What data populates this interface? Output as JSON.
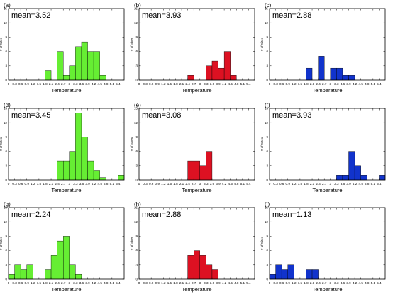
{
  "chart_data": [
    {
      "type": "bar",
      "panel": "(a)",
      "annotation": "mean=3.52",
      "color": "#66ee33",
      "xlabel": "Temperature",
      "ylabel": "# of Sites",
      "ylim": [
        0,
        15
      ],
      "yticks": [
        0,
        3,
        6,
        9,
        12,
        15
      ],
      "xticks": [
        "0",
        "0.3",
        "0.6",
        "0.9",
        "1.2",
        "1.5",
        "1.8",
        "2.1",
        "2.4",
        "2.7",
        "3",
        "3.3",
        "3.6",
        "3.9",
        "4.2",
        "4.5",
        "4.8",
        "5.1",
        "5.4"
      ],
      "bars": [
        {
          "x": 1.95,
          "value": 2
        },
        {
          "x": 2.55,
          "value": 6
        },
        {
          "x": 2.85,
          "value": 1
        },
        {
          "x": 3.15,
          "value": 3
        },
        {
          "x": 3.45,
          "value": 7
        },
        {
          "x": 3.75,
          "value": 8
        },
        {
          "x": 4.05,
          "value": 6
        },
        {
          "x": 4.35,
          "value": 6
        },
        {
          "x": 4.65,
          "value": 1
        }
      ]
    },
    {
      "type": "bar",
      "panel": "(b)",
      "annotation": "mean=3.93",
      "color": "#dd1122",
      "xlabel": "Temperature",
      "ylabel": "# of Sites",
      "ylim": [
        0,
        15
      ],
      "yticks": [
        0,
        3,
        6,
        9,
        12,
        15
      ],
      "xticks": [
        "0",
        "0.3",
        "0.6",
        "0.9",
        "1.2",
        "1.5",
        "1.8",
        "2.1",
        "2.4",
        "2.7",
        "3",
        "3.3",
        "3.6",
        "3.9",
        "4.2",
        "4.5",
        "4.8",
        "5.1",
        "5.4"
      ],
      "bars": [
        {
          "x": 2.55,
          "value": 1
        },
        {
          "x": 3.45,
          "value": 3
        },
        {
          "x": 3.75,
          "value": 4
        },
        {
          "x": 4.05,
          "value": 2.5
        },
        {
          "x": 4.35,
          "value": 6
        },
        {
          "x": 4.65,
          "value": 1
        }
      ]
    },
    {
      "type": "bar",
      "panel": "(c)",
      "annotation": "mean=2.88",
      "color": "#1133cc",
      "xlabel": "Temperature",
      "ylabel": "# of Sites",
      "ylim": [
        0,
        15
      ],
      "yticks": [
        0,
        3,
        6,
        9,
        12,
        15
      ],
      "xticks": [
        "0",
        "0.3",
        "0.6",
        "0.9",
        "1.2",
        "1.5",
        "1.8",
        "2.1",
        "2.4",
        "2.7",
        "3",
        "3.3",
        "3.6",
        "3.9",
        "4.2",
        "4.5",
        "4.8",
        "5.1",
        "5.4"
      ],
      "bars": [
        {
          "x": 1.95,
          "value": 2.5
        },
        {
          "x": 2.55,
          "value": 5
        },
        {
          "x": 3.15,
          "value": 2.5
        },
        {
          "x": 3.45,
          "value": 2.5
        },
        {
          "x": 3.75,
          "value": 1
        },
        {
          "x": 4.05,
          "value": 1
        }
      ]
    },
    {
      "type": "bar",
      "panel": "(d)",
      "annotation": "mean=3.45",
      "color": "#66ee33",
      "xlabel": "Temperature",
      "ylabel": "# of Sites",
      "ylim": [
        0,
        15
      ],
      "yticks": [
        0,
        3,
        6,
        9,
        12,
        15
      ],
      "xticks": [
        "0",
        "0.3",
        "0.6",
        "0.9",
        "1.2",
        "1.5",
        "1.8",
        "2.1",
        "2.4",
        "2.7",
        "3",
        "3.3",
        "3.6",
        "3.9",
        "4.2",
        "4.5",
        "4.8",
        "5.1",
        "5.4"
      ],
      "bars": [
        {
          "x": 2.55,
          "value": 4
        },
        {
          "x": 2.85,
          "value": 4
        },
        {
          "x": 3.15,
          "value": 6
        },
        {
          "x": 3.45,
          "value": 14
        },
        {
          "x": 3.75,
          "value": 9
        },
        {
          "x": 4.05,
          "value": 4
        },
        {
          "x": 4.35,
          "value": 2
        },
        {
          "x": 4.65,
          "value": 0.5
        },
        {
          "x": 5.55,
          "value": 1
        }
      ]
    },
    {
      "type": "bar",
      "panel": "(e)",
      "annotation": "mean=3.08",
      "color": "#dd1122",
      "xlabel": "Temperature",
      "ylabel": "# of Sites",
      "ylim": [
        0,
        15
      ],
      "yticks": [
        0,
        3,
        6,
        9,
        12,
        15
      ],
      "xticks": [
        "0",
        "0.3",
        "0.6",
        "0.9",
        "1.2",
        "1.5",
        "1.8",
        "2.1",
        "2.4",
        "2.7",
        "3",
        "3.3",
        "3.6",
        "3.9",
        "4.2",
        "4.5",
        "4.8",
        "5.1",
        "5.4"
      ],
      "bars": [
        {
          "x": 2.55,
          "value": 4
        },
        {
          "x": 2.85,
          "value": 4
        },
        {
          "x": 3.15,
          "value": 3
        },
        {
          "x": 3.45,
          "value": 6
        }
      ]
    },
    {
      "type": "bar",
      "panel": "(f)",
      "annotation": "mean=3.93",
      "color": "#1133cc",
      "xlabel": "Temperature",
      "ylabel": "# of Sites",
      "ylim": [
        0,
        15
      ],
      "yticks": [
        0,
        3,
        6,
        9,
        12,
        15
      ],
      "xticks": [
        "0",
        "0.3",
        "0.6",
        "0.9",
        "1.2",
        "1.5",
        "1.8",
        "2.1",
        "2.4",
        "2.7",
        "3",
        "3.3",
        "3.6",
        "3.9",
        "4.2",
        "4.5",
        "4.8",
        "5.1",
        "5.4"
      ],
      "bars": [
        {
          "x": 3.45,
          "value": 1
        },
        {
          "x": 3.75,
          "value": 1
        },
        {
          "x": 4.05,
          "value": 6
        },
        {
          "x": 4.35,
          "value": 3
        },
        {
          "x": 4.65,
          "value": 1
        },
        {
          "x": 5.55,
          "value": 1
        }
      ]
    },
    {
      "type": "bar",
      "panel": "(g)",
      "annotation": "mean=2.24",
      "color": "#66ee33",
      "xlabel": "Temperature",
      "ylabel": "# of Sites",
      "ylim": [
        0,
        15
      ],
      "yticks": [
        0,
        3,
        6,
        9,
        12,
        15
      ],
      "xticks": [
        "0",
        "0.3",
        "0.6",
        "0.9",
        "1.2",
        "1.5",
        "1.8",
        "2.1",
        "2.4",
        "2.7",
        "3",
        "3.3",
        "3.6",
        "3.9",
        "4.2",
        "4.5",
        "4.8",
        "5.1",
        "5.4"
      ],
      "bars": [
        {
          "x": 0.15,
          "value": 1
        },
        {
          "x": 0.45,
          "value": 3
        },
        {
          "x": 0.75,
          "value": 2
        },
        {
          "x": 1.05,
          "value": 3
        },
        {
          "x": 1.95,
          "value": 2
        },
        {
          "x": 2.25,
          "value": 5
        },
        {
          "x": 2.55,
          "value": 8
        },
        {
          "x": 2.85,
          "value": 9
        },
        {
          "x": 3.15,
          "value": 3
        },
        {
          "x": 3.45,
          "value": 1
        }
      ]
    },
    {
      "type": "bar",
      "panel": "(h)",
      "annotation": "mean=2.88",
      "color": "#dd1122",
      "xlabel": "Temperature",
      "ylabel": "# of Sites",
      "ylim": [
        0,
        15
      ],
      "yticks": [
        0,
        3,
        6,
        9,
        12,
        15
      ],
      "xticks": [
        "0",
        "0.3",
        "0.6",
        "0.9",
        "1.2",
        "1.5",
        "1.8",
        "2.1",
        "2.4",
        "2.7",
        "3",
        "3.3",
        "3.6",
        "3.9",
        "4.2",
        "4.5",
        "4.8",
        "5.1",
        "5.4"
      ],
      "bars": [
        {
          "x": 2.55,
          "value": 5
        },
        {
          "x": 2.85,
          "value": 6
        },
        {
          "x": 3.15,
          "value": 5
        },
        {
          "x": 3.45,
          "value": 3
        },
        {
          "x": 3.75,
          "value": 2
        }
      ]
    },
    {
      "type": "bar",
      "panel": "(i)",
      "annotation": "mean=1.13",
      "color": "#1133cc",
      "xlabel": "Temperature",
      "ylabel": "# of Sites",
      "ylim": [
        0,
        15
      ],
      "yticks": [
        0,
        3,
        6,
        9,
        12,
        15
      ],
      "xticks": [
        "0",
        "0.3",
        "0.6",
        "0.9",
        "1.2",
        "1.5",
        "1.8",
        "2.1",
        "2.4",
        "2.7",
        "3",
        "3.3",
        "3.6",
        "3.9",
        "4.2",
        "4.5",
        "4.8",
        "5.1",
        "5.4"
      ],
      "bars": [
        {
          "x": 0.15,
          "value": 1
        },
        {
          "x": 0.45,
          "value": 3
        },
        {
          "x": 0.75,
          "value": 2
        },
        {
          "x": 1.05,
          "value": 3
        },
        {
          "x": 1.95,
          "value": 2
        },
        {
          "x": 2.25,
          "value": 2
        }
      ]
    }
  ]
}
